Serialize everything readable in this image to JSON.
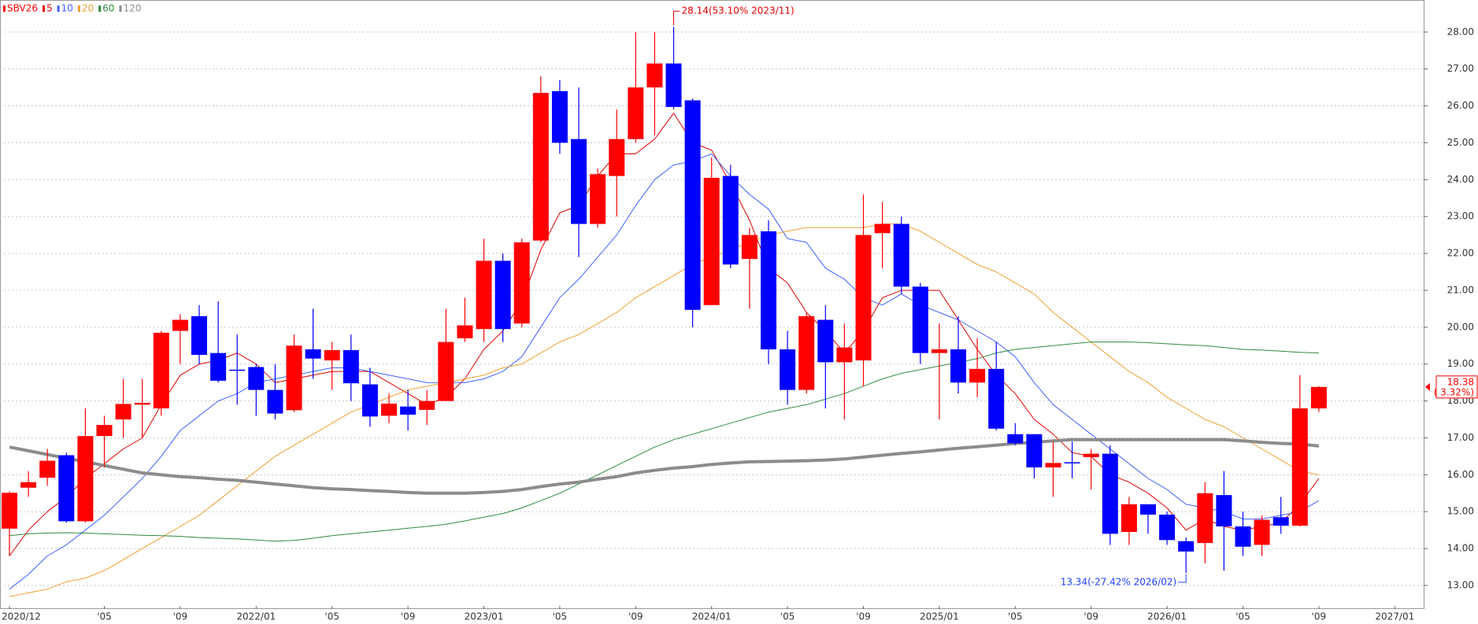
{
  "chart_data": {
    "type": "candlestick",
    "name": "SBV26",
    "up_color": "#ff0000",
    "down_color": "#0000ff",
    "categories": [
      "2020/12",
      null,
      null,
      null,
      null,
      "'05",
      null,
      null,
      null,
      "'09",
      null,
      null,
      null,
      "2022/01",
      null,
      null,
      null,
      "'05",
      null,
      null,
      null,
      "'09",
      null,
      null,
      null,
      "2023/01",
      null,
      null,
      null,
      "'05",
      null,
      null,
      null,
      "'09",
      null,
      null,
      null,
      "2024/01",
      null,
      null,
      null,
      "'05",
      null,
      null,
      null,
      "'09",
      null,
      null,
      null,
      "2025/01",
      null,
      null,
      null,
      "'05",
      null,
      null,
      null,
      "'09",
      null,
      null,
      null,
      "2026/01",
      null,
      null,
      null,
      "'05",
      null,
      null,
      null,
      "'09",
      null,
      null,
      null,
      "2027/01"
    ],
    "open": [
      14.54,
      15.65,
      15.92,
      16.53,
      14.74,
      17.05,
      17.5,
      17.9,
      17.8,
      19.9,
      20.3,
      19.3,
      18.85,
      18.92,
      18.3,
      17.75,
      19.4,
      19.1,
      19.38,
      18.45,
      17.6,
      17.85,
      17.76,
      18.0,
      19.7,
      19.95,
      21.8,
      20.1,
      22.35,
      26.4,
      25.1,
      22.8,
      24.1,
      25.1,
      26.5,
      27.15,
      26.15,
      20.6,
      24.1,
      21.85,
      22.6,
      19.4,
      18.3,
      20.2,
      19.05,
      19.1,
      22.55,
      22.8,
      21.1,
      19.3,
      19.4,
      18.5,
      18.87,
      17.1,
      17.1,
      16.2,
      16.34,
      16.48,
      16.57,
      14.45,
      15.2,
      14.92,
      14.2,
      14.15,
      15.45,
      14.6,
      14.1,
      14.85,
      14.62,
      17.8,
      null,
      null,
      null,
      null
    ],
    "high": [
      15.55,
      16.1,
      16.7,
      16.6,
      17.8,
      17.6,
      18.6,
      18.6,
      19.9,
      20.35,
      20.6,
      20.7,
      19.8,
      19.0,
      19.0,
      19.8,
      20.5,
      19.6,
      19.8,
      18.9,
      18.2,
      18.3,
      18.3,
      20.5,
      20.8,
      22.4,
      22.0,
      22.4,
      26.8,
      26.7,
      26.5,
      24.3,
      25.9,
      28.0,
      28.0,
      28.14,
      26.2,
      24.6,
      24.4,
      22.7,
      22.9,
      19.9,
      20.4,
      20.6,
      20.1,
      23.6,
      23.4,
      23.0,
      21.2,
      20.1,
      20.3,
      19.7,
      19.6,
      17.4,
      17.1,
      16.9,
      16.9,
      16.7,
      16.8,
      15.4,
      15.2,
      15.0,
      14.3,
      15.8,
      16.1,
      15.0,
      14.9,
      15.4,
      18.7,
      18.4,
      null,
      null,
      null,
      null
    ],
    "low": [
      13.8,
      15.4,
      15.7,
      14.7,
      14.7,
      16.2,
      17.0,
      17.0,
      17.6,
      19.0,
      19.0,
      18.5,
      17.9,
      17.6,
      17.5,
      17.7,
      18.6,
      18.3,
      18.0,
      17.3,
      17.4,
      17.2,
      17.35,
      18.0,
      19.6,
      19.6,
      19.6,
      20.0,
      22.3,
      24.7,
      21.9,
      22.7,
      23.0,
      25.0,
      25.2,
      25.9,
      20.0,
      20.6,
      21.6,
      20.5,
      19.0,
      17.9,
      18.2,
      17.8,
      17.5,
      18.4,
      21.6,
      20.9,
      19.0,
      17.5,
      18.2,
      18.1,
      17.2,
      16.8,
      15.9,
      15.4,
      15.9,
      15.6,
      14.1,
      14.1,
      14.4,
      14.1,
      13.34,
      13.6,
      13.4,
      13.8,
      13.8,
      14.4,
      14.6,
      17.7,
      null,
      null,
      null,
      null
    ],
    "close": [
      15.51,
      15.8,
      16.38,
      14.74,
      17.05,
      17.35,
      17.92,
      17.95,
      19.85,
      20.2,
      19.25,
      18.55,
      18.82,
      18.3,
      17.66,
      19.5,
      19.15,
      19.38,
      18.48,
      17.58,
      17.93,
      17.63,
      18.0,
      19.6,
      20.05,
      21.8,
      19.95,
      22.3,
      26.35,
      25.0,
      22.8,
      24.15,
      25.1,
      26.5,
      27.15,
      25.97,
      20.47,
      24.05,
      21.7,
      22.5,
      19.4,
      18.3,
      20.3,
      19.05,
      19.45,
      22.5,
      22.8,
      21.1,
      19.3,
      19.4,
      18.5,
      18.87,
      17.25,
      16.85,
      16.2,
      16.32,
      16.32,
      16.57,
      14.4,
      15.2,
      14.92,
      14.23,
      13.92,
      15.5,
      14.6,
      14.05,
      14.78,
      14.62,
      17.8,
      18.38,
      null,
      null,
      null,
      null
    ],
    "series": [
      {
        "name": "5",
        "color": "#e00000",
        "width": 1,
        "values": [
          13.8,
          14.5,
          15.0,
          15.4,
          15.9,
          16.3,
          16.7,
          17.0,
          17.9,
          18.7,
          19.0,
          19.1,
          19.3,
          19.0,
          18.5,
          18.6,
          18.7,
          18.8,
          18.8,
          18.8,
          18.5,
          18.2,
          17.9,
          18.1,
          18.6,
          19.4,
          19.9,
          20.7,
          22.1,
          23.1,
          23.3,
          24.1,
          24.7,
          24.7,
          25.1,
          25.8,
          25.0,
          24.8,
          23.9,
          22.9,
          21.6,
          21.2,
          20.4,
          19.9,
          19.3,
          19.9,
          20.8,
          21.0,
          21.0,
          21.0,
          20.2,
          19.4,
          18.7,
          18.2,
          17.5,
          17.1,
          16.6,
          16.5,
          16.0,
          15.8,
          15.5,
          15.1,
          14.5,
          14.8,
          14.6,
          14.5,
          14.6,
          14.7,
          15.2,
          15.9,
          null,
          null,
          null,
          null
        ]
      },
      {
        "name": "10",
        "color": "#4060ff",
        "width": 1,
        "values": [
          12.9,
          13.3,
          13.8,
          14.1,
          14.5,
          14.9,
          15.4,
          15.9,
          16.5,
          17.2,
          17.6,
          18.0,
          18.2,
          18.5,
          18.6,
          18.7,
          18.8,
          18.9,
          18.9,
          18.8,
          18.7,
          18.6,
          18.5,
          18.5,
          18.5,
          18.6,
          18.8,
          19.2,
          20.0,
          20.8,
          21.3,
          21.9,
          22.5,
          23.3,
          24.0,
          24.4,
          24.5,
          24.7,
          24.1,
          23.6,
          23.2,
          22.4,
          22.3,
          21.6,
          21.3,
          20.8,
          20.6,
          20.9,
          20.6,
          20.4,
          20.2,
          19.9,
          19.6,
          19.2,
          18.5,
          17.9,
          17.5,
          17.1,
          16.7,
          16.3,
          15.9,
          15.6,
          15.2,
          15.1,
          15.0,
          14.8,
          14.8,
          14.9,
          15.0,
          15.3,
          null,
          null,
          null,
          null
        ]
      },
      {
        "name": "20",
        "color": "#f0a030",
        "width": 1,
        "values": [
          12.7,
          12.8,
          12.9,
          13.1,
          13.2,
          13.4,
          13.7,
          14.0,
          14.3,
          14.6,
          14.9,
          15.3,
          15.7,
          16.1,
          16.5,
          16.8,
          17.1,
          17.4,
          17.7,
          17.9,
          18.1,
          18.3,
          18.4,
          18.5,
          18.6,
          18.7,
          18.9,
          19.0,
          19.3,
          19.6,
          19.8,
          20.1,
          20.4,
          20.8,
          21.1,
          21.4,
          21.7,
          21.9,
          22.1,
          22.3,
          22.5,
          22.6,
          22.7,
          22.7,
          22.7,
          22.7,
          22.8,
          22.8,
          22.6,
          22.3,
          22.0,
          21.7,
          21.5,
          21.2,
          20.9,
          20.4,
          20.0,
          19.6,
          19.2,
          18.8,
          18.5,
          18.1,
          17.8,
          17.5,
          17.3,
          17.0,
          16.7,
          16.4,
          16.1,
          16.0,
          null,
          null,
          null,
          null
        ]
      },
      {
        "name": "60",
        "color": "#2e8b3e",
        "width": 1,
        "values": [
          14.35,
          14.4,
          14.42,
          14.43,
          14.42,
          14.4,
          14.38,
          14.36,
          14.35,
          14.33,
          14.3,
          14.28,
          14.26,
          14.23,
          14.2,
          14.22,
          14.28,
          14.35,
          14.4,
          14.45,
          14.5,
          14.55,
          14.6,
          14.66,
          14.75,
          14.85,
          14.95,
          15.1,
          15.3,
          15.5,
          15.75,
          16.0,
          16.25,
          16.5,
          16.75,
          16.95,
          17.1,
          17.25,
          17.4,
          17.55,
          17.7,
          17.8,
          17.9,
          18.05,
          18.2,
          18.4,
          18.6,
          18.75,
          18.85,
          18.95,
          19.05,
          19.15,
          19.3,
          19.4,
          19.45,
          19.5,
          19.55,
          19.6,
          19.6,
          19.6,
          19.58,
          19.55,
          19.52,
          19.5,
          19.45,
          19.4,
          19.38,
          19.35,
          19.32,
          19.3,
          null,
          null,
          null,
          null
        ]
      },
      {
        "name": "120",
        "color": "#8c8c8c",
        "width": 4,
        "values": [
          16.75,
          16.65,
          16.55,
          16.45,
          16.35,
          16.25,
          16.15,
          16.05,
          16.0,
          15.95,
          15.92,
          15.88,
          15.85,
          15.8,
          15.75,
          15.7,
          15.65,
          15.62,
          15.6,
          15.57,
          15.55,
          15.52,
          15.5,
          15.5,
          15.5,
          15.52,
          15.55,
          15.6,
          15.68,
          15.75,
          15.8,
          15.88,
          15.95,
          16.05,
          16.12,
          16.18,
          16.22,
          16.28,
          16.32,
          16.35,
          16.36,
          16.37,
          16.38,
          16.4,
          16.43,
          16.48,
          16.53,
          16.58,
          16.62,
          16.67,
          16.72,
          16.76,
          16.8,
          16.85,
          16.88,
          16.92,
          16.95,
          16.95,
          16.95,
          16.95,
          16.95,
          16.95,
          16.95,
          16.95,
          16.95,
          16.92,
          16.88,
          16.85,
          16.83,
          16.78,
          null,
          null,
          null,
          null
        ]
      }
    ],
    "ylim": [
      12.36,
      28.87
    ],
    "yticks": [
      {
        "value": 13,
        "label": "13.00"
      },
      {
        "value": 14,
        "label": "14.00"
      },
      {
        "value": 15,
        "label": "15.00"
      },
      {
        "value": 16,
        "label": "16.00"
      },
      {
        "value": 17,
        "label": "17.00"
      },
      {
        "value": 18,
        "label": "18.00"
      },
      {
        "value": 19,
        "label": "19.00"
      },
      {
        "value": 20,
        "label": "20.00"
      },
      {
        "value": 21,
        "label": "21.00"
      },
      {
        "value": 22,
        "label": "22.00"
      },
      {
        "value": 23,
        "label": "23.00"
      },
      {
        "value": 24,
        "label": "24.00"
      },
      {
        "value": 25,
        "label": "25.00"
      },
      {
        "value": 26,
        "label": "26.00"
      },
      {
        "value": 27,
        "label": "27.00"
      },
      {
        "value": 28,
        "label": "28.00"
      }
    ],
    "grid": true,
    "annotations": [
      {
        "text": "28.14(53.10% 2023/11)",
        "color": "#e00000"
      },
      {
        "text": "13.34(-27.42% 2026/02)",
        "color": "#2040ff"
      }
    ],
    "last_label": {
      "price": "18.38",
      "change": "( 3.32%)",
      "color": "#ff0000"
    }
  }
}
